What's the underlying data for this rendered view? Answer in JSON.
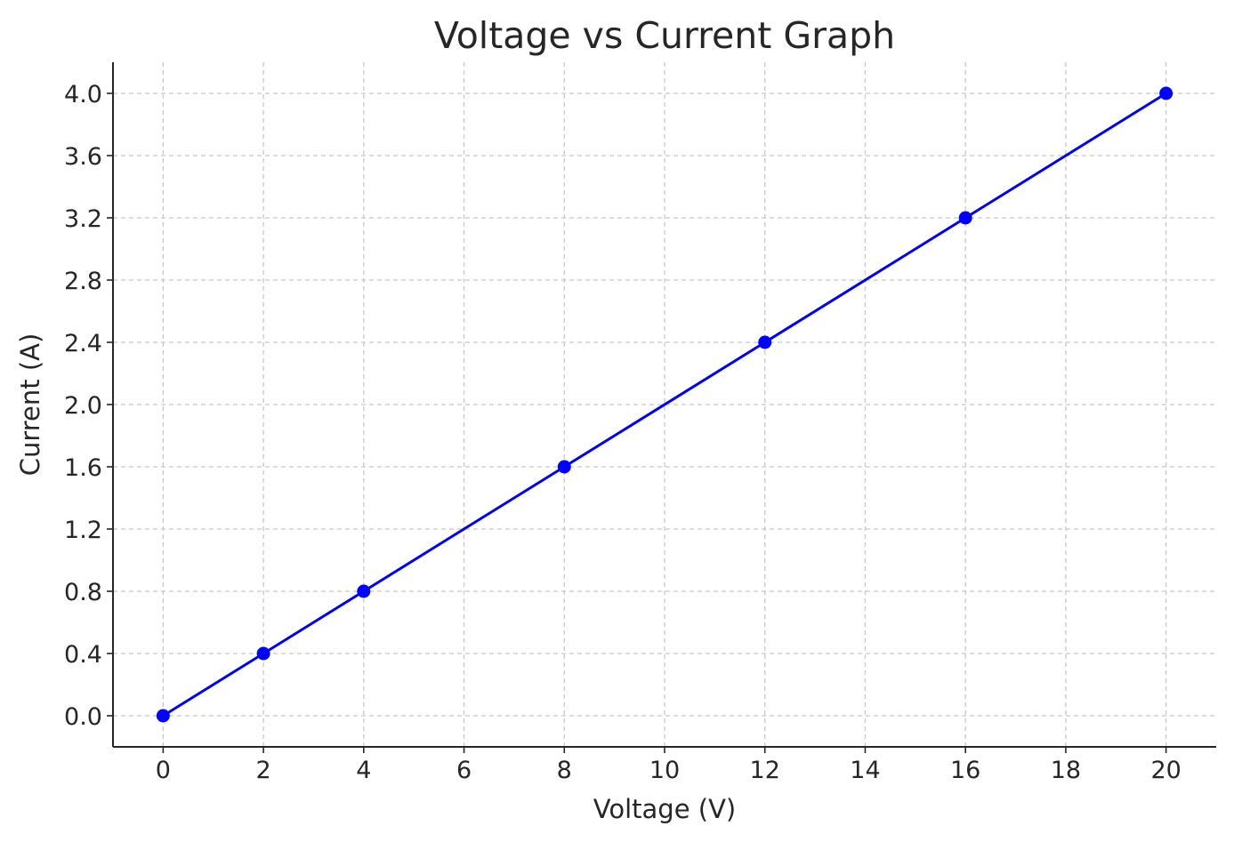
{
  "chart_data": {
    "type": "line",
    "title": "Voltage vs Current Graph",
    "xlabel": "Voltage (V)",
    "ylabel": "Current (A)",
    "x": [
      0,
      2,
      4,
      8,
      12,
      16,
      20
    ],
    "series": [
      {
        "name": "Current",
        "values": [
          0.0,
          0.4,
          0.8,
          1.6,
          2.4,
          3.2,
          4.0
        ],
        "color": "#0000ff",
        "marker": "circle"
      }
    ],
    "xlim": [
      -1,
      21
    ],
    "ylim": [
      -0.2,
      4.2
    ],
    "xticks": [
      0,
      2,
      4,
      6,
      8,
      10,
      12,
      14,
      16,
      18,
      20
    ],
    "xtick_labels": [
      "0",
      "2",
      "4",
      "6",
      "8",
      "10",
      "12",
      "14",
      "16",
      "18",
      "20"
    ],
    "yticks": [
      0.0,
      0.4,
      0.8,
      1.2,
      1.6,
      2.0,
      2.4,
      2.8,
      3.2,
      3.6,
      4.0
    ],
    "ytick_labels": [
      "0.0",
      "0.4",
      "0.8",
      "1.2",
      "1.6",
      "2.0",
      "2.4",
      "2.8",
      "3.2",
      "3.6",
      "4.0"
    ],
    "grid": true,
    "grid_style": "dashed"
  }
}
